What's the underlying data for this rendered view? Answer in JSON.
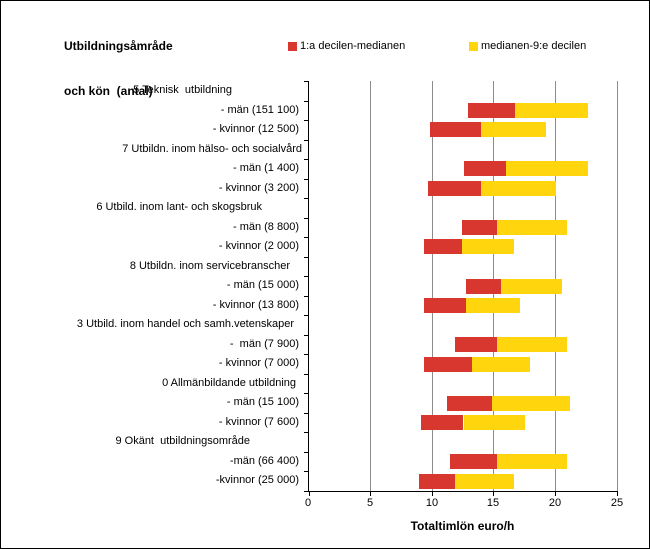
{
  "title": {
    "line1": "Utbildningsåmråde",
    "line2": "och kön  (antal)"
  },
  "legend": [
    {
      "label": "1:a decilen-medianen",
      "color": "#D83730"
    },
    {
      "label": "medianen-9:e decilen",
      "color": "#FFD60D"
    }
  ],
  "colors": {
    "red_segment": "#D83730",
    "yellow_segment": "#FFD60D",
    "gridline": "#8C8C8C",
    "axis": "#000000",
    "background": "#FFFFFF"
  },
  "chart_data": {
    "type": "bar",
    "orientation": "horizontal",
    "description": "Floating decile bars: red spans 1st decile to median, yellow spans median to 9th decile of total hourly pay",
    "xlabel": "Totaltimlön euro/h",
    "xlim": [
      0,
      25
    ],
    "xticks": [
      0,
      5,
      10,
      15,
      20,
      25
    ],
    "grid": true,
    "legend_series": [
      "1:a decilen-medianen",
      "medianen-9:e decilen"
    ],
    "rows": [
      {
        "label": "5 Teknisk  utbildning",
        "type": "header",
        "pad": 72
      },
      {
        "label": "- män (151 100)",
        "type": "data",
        "d1": 12.9,
        "median": 16.7,
        "d9": 22.6
      },
      {
        "label": "- kvinnor (12 500)",
        "type": "data",
        "d1": 9.8,
        "median": 13.9,
        "d9": 19.2
      },
      {
        "label": "7 Utbildn. inom hälso- och socialvård",
        "type": "header",
        "pad": 2
      },
      {
        "label": "- män (1 400)",
        "type": "data",
        "d1": 12.5,
        "median": 15.9,
        "d9": 22.6
      },
      {
        "label": "- kvinnor (3 200)",
        "type": "data",
        "d1": 9.6,
        "median": 13.9,
        "d9": 20.0
      },
      {
        "label": "6 Utbild. inom lant- och skogsbruk",
        "type": "header",
        "pad": 42
      },
      {
        "label": "- män (8 800)",
        "type": "data",
        "d1": 12.4,
        "median": 15.2,
        "d9": 20.9
      },
      {
        "label": "- kvinnor (2 000)",
        "type": "data",
        "d1": 9.3,
        "median": 12.4,
        "d9": 16.6
      },
      {
        "label": "8 Utbildn. inom servicebranscher",
        "type": "header",
        "pad": 14
      },
      {
        "label": "- män (15 000)",
        "type": "data",
        "d1": 12.7,
        "median": 15.5,
        "d9": 20.5
      },
      {
        "label": "- kvinnor (13 800)",
        "type": "data",
        "d1": 9.3,
        "median": 12.7,
        "d9": 17.1
      },
      {
        "label": "3 Utbild. inom handel och samh.vetenskaper",
        "type": "header",
        "pad": 10
      },
      {
        "label": "-  män (7 900)",
        "type": "data",
        "d1": 11.8,
        "median": 15.2,
        "d9": 20.9
      },
      {
        "label": "- kvinnor (7 000)",
        "type": "data",
        "d1": 9.3,
        "median": 13.2,
        "d9": 17.9
      },
      {
        "label": "0 Allmänbildande utbildning",
        "type": "header",
        "pad": 8
      },
      {
        "label": "- män (15 100)",
        "type": "data",
        "d1": 11.2,
        "median": 14.8,
        "d9": 21.1
      },
      {
        "label": "- kvinnor (7 600)",
        "type": "data",
        "d1": 9.1,
        "median": 12.5,
        "d9": 17.5
      },
      {
        "label": "9 Okänt  utbildningsområde",
        "type": "header",
        "pad": 54
      },
      {
        "label": "-män (66 400)",
        "type": "data",
        "d1": 11.4,
        "median": 15.2,
        "d9": 20.9
      },
      {
        "label": "-kvinnor (25 000)",
        "type": "data",
        "d1": 8.9,
        "median": 11.8,
        "d9": 16.6
      }
    ]
  }
}
